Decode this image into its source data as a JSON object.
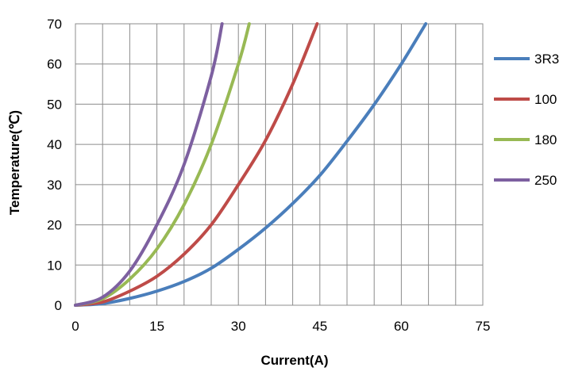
{
  "chart_data": {
    "type": "line",
    "title": "",
    "xlabel": "Current(A)",
    "ylabel": "Temperature(℃)",
    "xlim": [
      0,
      75
    ],
    "ylim": [
      0,
      70
    ],
    "x_ticks": [
      0,
      15,
      30,
      45,
      60,
      75
    ],
    "y_ticks": [
      0,
      10,
      20,
      30,
      40,
      50,
      60,
      70
    ],
    "grid": true,
    "legend_position": "right",
    "series": [
      {
        "name": "3R3",
        "color": "#4a7ebb",
        "points": [
          [
            0,
            0
          ],
          [
            5,
            0.4
          ],
          [
            10,
            1.7
          ],
          [
            15,
            3.5
          ],
          [
            20,
            5.9
          ],
          [
            25,
            9.2
          ],
          [
            30,
            13.9
          ],
          [
            35,
            19.2
          ],
          [
            40,
            25.3
          ],
          [
            45,
            32.3
          ],
          [
            50,
            40.8
          ],
          [
            55,
            49.9
          ],
          [
            60,
            60.0
          ],
          [
            64.5,
            70
          ]
        ]
      },
      {
        "name": "100",
        "color": "#be4b48",
        "points": [
          [
            0,
            0
          ],
          [
            5,
            0.8
          ],
          [
            10,
            3.5
          ],
          [
            15,
            7.2
          ],
          [
            20,
            12.7
          ],
          [
            25,
            20.0
          ],
          [
            30,
            30.0
          ],
          [
            35,
            41.0
          ],
          [
            40,
            55.0
          ],
          [
            44.5,
            70
          ]
        ]
      },
      {
        "name": "180",
        "color": "#98b954",
        "points": [
          [
            0,
            0
          ],
          [
            5,
            1.6
          ],
          [
            10,
            6.5
          ],
          [
            15,
            14.0
          ],
          [
            20,
            25.0
          ],
          [
            25,
            40.0
          ],
          [
            30,
            60.0
          ],
          [
            32,
            70
          ]
        ]
      },
      {
        "name": "250",
        "color": "#7d60a0",
        "points": [
          [
            0,
            0
          ],
          [
            5,
            2.0
          ],
          [
            10,
            8.5
          ],
          [
            15,
            20.0
          ],
          [
            20,
            35.0
          ],
          [
            25,
            57.0
          ],
          [
            27,
            70
          ]
        ]
      }
    ]
  }
}
